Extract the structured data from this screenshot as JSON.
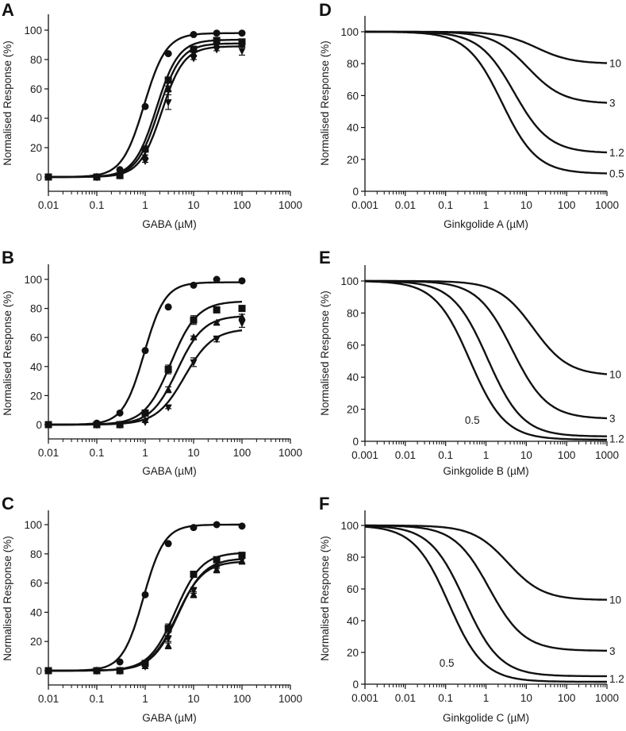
{
  "chart_data": [
    {
      "panel": "A",
      "type": "line",
      "xscale": "log",
      "xlabel": "GABA (µM)",
      "ylabel": "Normalised Response (%)",
      "xlim": [
        0.01,
        1000
      ],
      "ylim": [
        -10,
        100
      ],
      "xticks": [
        "0.01",
        "0.1",
        "1",
        "10",
        "100",
        "1000"
      ],
      "yticks": [
        "0",
        "20",
        "40",
        "60",
        "80",
        "100"
      ],
      "x": [
        0.01,
        0.1,
        0.3,
        1,
        3,
        10,
        30,
        100
      ],
      "series": [
        {
          "name": "circle",
          "marker": "circle",
          "values": [
            0,
            0,
            5,
            48,
            84,
            97,
            98,
            98
          ],
          "err": [
            0,
            0,
            0,
            0,
            0,
            0,
            0,
            0
          ],
          "fit": {
            "top": 98,
            "ec50": 0.95,
            "hill": 1.9
          }
        },
        {
          "name": "square",
          "marker": "square",
          "values": [
            0,
            0,
            1,
            19,
            66,
            87,
            93,
            92
          ],
          "err": [
            0,
            0,
            0,
            1,
            2,
            1,
            1,
            1
          ],
          "fit": {
            "top": 93.5,
            "ec50": 1.7,
            "hill": 1.9
          }
        },
        {
          "name": "triangle",
          "marker": "triangle-up",
          "values": [
            0,
            0,
            1,
            14,
            60,
            84,
            90,
            90
          ],
          "err": [
            0,
            0,
            0,
            1,
            2,
            1,
            1,
            1
          ],
          "fit": {
            "top": 91,
            "ec50": 1.9,
            "hill": 1.9
          }
        },
        {
          "name": "inverted-triangle",
          "marker": "triangle-down",
          "values": [
            0,
            0,
            1,
            11,
            51,
            81,
            87,
            86
          ],
          "err": [
            0,
            0,
            0,
            1,
            5,
            1,
            1,
            3
          ],
          "fit": {
            "top": 89,
            "ec50": 2.2,
            "hill": 1.9
          }
        }
      ]
    },
    {
      "panel": "B",
      "type": "line",
      "xscale": "log",
      "xlabel": "GABA (µM)",
      "ylabel": "Normalised Response (%)",
      "xlim": [
        0.01,
        1000
      ],
      "ylim": [
        -10,
        100
      ],
      "xticks": [
        "0.01",
        "0.1",
        "1",
        "10",
        "100",
        "1000"
      ],
      "yticks": [
        "0",
        "20",
        "40",
        "60",
        "80",
        "100"
      ],
      "x": [
        0.01,
        0.1,
        0.3,
        1,
        3,
        10,
        30,
        100
      ],
      "series": [
        {
          "name": "circle",
          "marker": "circle",
          "values": [
            0,
            1,
            8,
            51,
            81,
            96,
            100,
            99
          ],
          "err": [
            0,
            0,
            0,
            0,
            0,
            0,
            0,
            0
          ],
          "fit": {
            "top": 98,
            "ec50": 0.95,
            "hill": 2.0
          }
        },
        {
          "name": "square",
          "marker": "square",
          "values": [
            0,
            0,
            0,
            8,
            38,
            72,
            79,
            80
          ],
          "err": [
            0,
            0,
            0,
            1,
            3,
            3,
            1,
            1
          ],
          "fit": {
            "top": 85,
            "ec50": 3.4,
            "hill": 1.6
          }
        },
        {
          "name": "triangle",
          "marker": "triangle-up",
          "values": [
            0,
            0,
            0,
            3,
            24,
            60,
            70,
            74
          ],
          "err": [
            0,
            0,
            0,
            0,
            2,
            1,
            1,
            2
          ],
          "fit": {
            "top": 75,
            "ec50": 4.6,
            "hill": 1.6
          }
        },
        {
          "name": "inverted-triangle",
          "marker": "triangle-down",
          "values": [
            0,
            0,
            0,
            2,
            12,
            43,
            59,
            70
          ],
          "err": [
            0,
            0,
            0,
            0,
            1,
            3,
            2,
            3
          ],
          "fit": {
            "top": 66,
            "ec50": 6.5,
            "hill": 1.5
          }
        }
      ]
    },
    {
      "panel": "C",
      "type": "line",
      "xscale": "log",
      "xlabel": "GABA (µM)",
      "ylabel": "Normalised Response (%)",
      "xlim": [
        0.01,
        1000
      ],
      "ylim": [
        -10,
        100
      ],
      "xticks": [
        "0.01",
        "0.1",
        "1",
        "10",
        "100",
        "1000"
      ],
      "yticks": [
        "0",
        "20",
        "40",
        "60",
        "80",
        "100"
      ],
      "x": [
        0.01,
        0.1,
        0.3,
        1,
        3,
        10,
        30,
        100
      ],
      "series": [
        {
          "name": "circle",
          "marker": "circle",
          "values": [
            0,
            0,
            6,
            52,
            87,
            98,
            100,
            99
          ],
          "err": [
            0,
            0,
            0,
            0,
            0,
            0,
            0,
            0
          ],
          "fit": {
            "top": 100,
            "ec50": 0.92,
            "hill": 2.0
          }
        },
        {
          "name": "square",
          "marker": "square",
          "values": [
            0,
            0,
            0,
            5,
            29,
            66,
            76,
            79
          ],
          "err": [
            0,
            0,
            0,
            1,
            3,
            2,
            1,
            1
          ],
          "fit": {
            "top": 81,
            "ec50": 4.2,
            "hill": 1.6
          }
        },
        {
          "name": "triangle",
          "marker": "triangle-up",
          "values": [
            0,
            0,
            0,
            3,
            17,
            52,
            69,
            75
          ],
          "err": [
            0,
            0,
            0,
            0,
            2,
            2,
            2,
            2
          ],
          "fit": {
            "top": 77,
            "ec50": 4.8,
            "hill": 1.6
          }
        },
        {
          "name": "inverted-triangle",
          "marker": "triangle-down",
          "values": [
            0,
            0,
            0,
            3,
            22,
            55,
            71,
            76
          ],
          "err": [
            0,
            0,
            0,
            0,
            2,
            2,
            1,
            3
          ],
          "fit": {
            "top": 75,
            "ec50": 4.5,
            "hill": 1.6
          }
        }
      ]
    },
    {
      "panel": "D",
      "type": "line",
      "xscale": "log",
      "xlabel": "Ginkgolide A (µM)",
      "ylabel": "Normalised Response (%)",
      "xlim": [
        0.001,
        1000
      ],
      "ylim": [
        0,
        100
      ],
      "xticks": [
        "0.001",
        "0.01",
        "0.1",
        "1",
        "10",
        "100",
        "1000"
      ],
      "yticks": [
        "0",
        "20",
        "40",
        "60",
        "80",
        "100"
      ],
      "series": [
        {
          "name": "0.5",
          "label": "0.5",
          "fit": {
            "bottom": 11,
            "ic50": 2.5,
            "hill": 1.0
          }
        },
        {
          "name": "1.2",
          "label": "1.2",
          "fit": {
            "bottom": 24,
            "ic50": 5,
            "hill": 1.0
          }
        },
        {
          "name": "3",
          "label": "3",
          "fit": {
            "bottom": 55,
            "ic50": 11,
            "hill": 1.0
          }
        },
        {
          "name": "10",
          "label": "10",
          "fit": {
            "bottom": 80,
            "ic50": 18,
            "hill": 1.0
          }
        }
      ]
    },
    {
      "panel": "E",
      "type": "line",
      "xscale": "log",
      "xlabel": "Ginkgolide B (µM)",
      "ylabel": "Normalised Response (%)",
      "xlim": [
        0.001,
        1000
      ],
      "ylim": [
        0,
        100
      ],
      "xticks": [
        "0.001",
        "0.01",
        "0.1",
        "1",
        "10",
        "100",
        "1000"
      ],
      "yticks": [
        "0",
        "20",
        "40",
        "60",
        "80",
        "100"
      ],
      "series": [
        {
          "name": "0.5",
          "label": "0.5",
          "fit": {
            "bottom": 1,
            "ic50": 0.4,
            "hill": 1.0
          }
        },
        {
          "name": "1.2",
          "label": "1.2",
          "fit": {
            "bottom": 3,
            "ic50": 1.1,
            "hill": 1.0
          }
        },
        {
          "name": "3",
          "label": "3",
          "fit": {
            "bottom": 14,
            "ic50": 4.5,
            "hill": 1.0
          }
        },
        {
          "name": "10",
          "label": "10",
          "fit": {
            "bottom": 41,
            "ic50": 15,
            "hill": 1.0
          }
        }
      ]
    },
    {
      "panel": "F",
      "type": "line",
      "xscale": "log",
      "xlabel": "Ginkgolide C (µM)",
      "ylabel": "Normalised Response (%)",
      "xlim": [
        0.001,
        1000
      ],
      "ylim": [
        0,
        100
      ],
      "xticks": [
        "0.001",
        "0.01",
        "0.1",
        "1",
        "10",
        "100",
        "1000"
      ],
      "yticks": [
        "0",
        "20",
        "40",
        "60",
        "80",
        "100"
      ],
      "series": [
        {
          "name": "0.5",
          "label": "0.5",
          "fit": {
            "bottom": 1.5,
            "ic50": 0.12,
            "hill": 1.0
          }
        },
        {
          "name": "1.2",
          "label": "1.2",
          "fit": {
            "bottom": 5,
            "ic50": 0.3,
            "hill": 1.0
          }
        },
        {
          "name": "3",
          "label": "3",
          "fit": {
            "bottom": 21,
            "ic50": 1.2,
            "hill": 1.0
          }
        },
        {
          "name": "10",
          "label": "10",
          "fit": {
            "bottom": 53,
            "ic50": 3.5,
            "hill": 1.0
          }
        }
      ]
    }
  ]
}
